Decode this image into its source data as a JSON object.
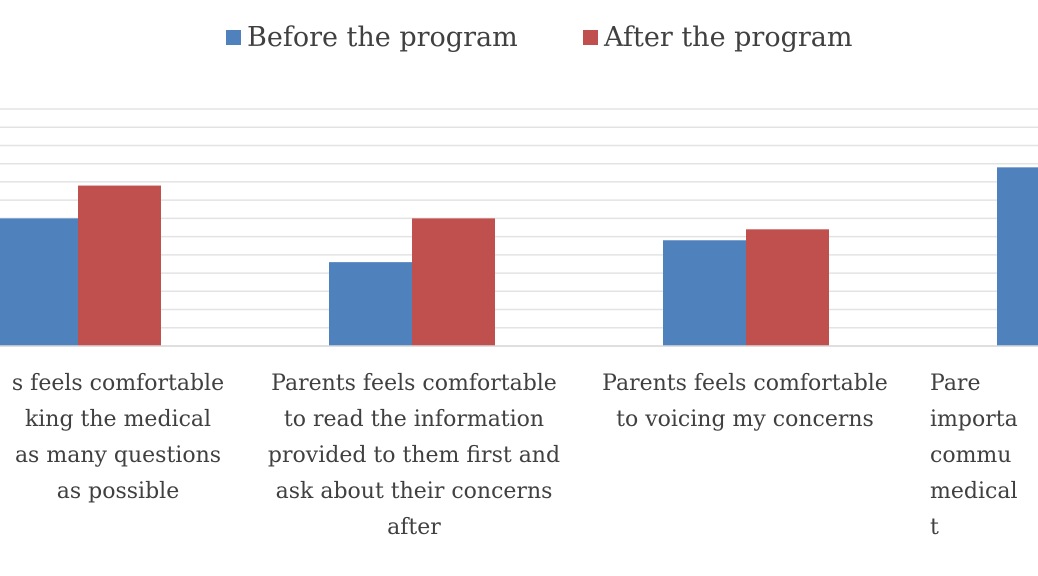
{
  "chart_data": {
    "type": "bar",
    "categories": [
      "Parents feels comfortable\nasking the medical\nstaff as many questions\nas possible",
      "Parents feels comfortable\nto read the information\nprovided to them first and\nask about their concerns\nafter",
      "Parents feels comfortable\nto voicing my concerns",
      "Parents feels it is\nimportant to openly\ncommunicate with\nmedical staff about\ntheir concerns"
    ],
    "visible_category_text": [
      "s feels comfortable\nking the medical\nas many questions\nas possible",
      "Parents feels comfortable\nto read the information\nprovided to them first and\nask about their concerns\nafter",
      "Parents feels comfortable\nto voicing my concerns",
      "Pare\nimporta\ncommu\nmedical\nt"
    ],
    "series": [
      {
        "name": "Before the program",
        "color": "#4F81BD",
        "values": [
          3.5,
          2.3,
          2.9,
          4.9
        ]
      },
      {
        "name": "After the program",
        "color": "#C0504D",
        "values": [
          4.4,
          3.5,
          3.2,
          null
        ]
      }
    ],
    "ylim": [
      0,
      6.5
    ],
    "grid": true,
    "legend_position": "top"
  }
}
